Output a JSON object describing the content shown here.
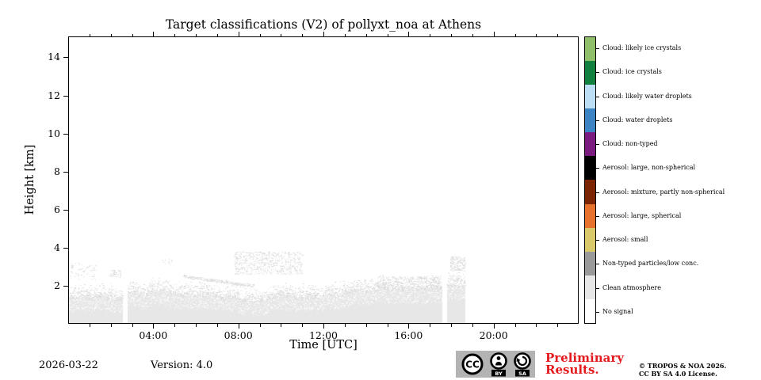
{
  "title": "Target classifications (V2) of pollyxt_noa at Athens",
  "footer": {
    "date": "2026-03-22",
    "version": "Version: 4.0",
    "preliminary": {
      "line1": "Preliminary",
      "line2": "Results.",
      "color": "#e4191c"
    },
    "copyright": {
      "line1": "© TROPOS & NOA 2026.",
      "line2": "CC BY SA 4.0 License."
    },
    "cc_badge": {
      "cc": "CC",
      "by": "BY",
      "sa": "SA",
      "bg": "#b3b3b3"
    }
  },
  "chart_data": {
    "type": "heatmap",
    "title": "Target classifications (V2) of pollyxt_noa at Athens",
    "xlabel": "Time [UTC]",
    "ylabel": "Height [km]",
    "xlim_hours": [
      0,
      24
    ],
    "ylim_km": [
      0,
      15.1
    ],
    "x_major_ticks": [
      {
        "hour": 4,
        "label": "04:00"
      },
      {
        "hour": 8,
        "label": "08:00"
      },
      {
        "hour": 12,
        "label": "12:00"
      },
      {
        "hour": 16,
        "label": "16:00"
      },
      {
        "hour": 20,
        "label": "20:00"
      }
    ],
    "x_minor_tick_every_hours": 1,
    "y_ticks_km": [
      2,
      4,
      6,
      8,
      10,
      12,
      14
    ],
    "grid": false,
    "legend_position": "right-colorbar",
    "classes": [
      {
        "label": "Cloud: likely ice crystals",
        "color": "#8fbf69"
      },
      {
        "label": "Cloud: ice crystals",
        "color": "#12803e"
      },
      {
        "label": "Cloud: likely water droplets",
        "color": "#bcdff6"
      },
      {
        "label": "Cloud: water droplets",
        "color": "#3d84c4"
      },
      {
        "label": "Cloud: non-typed",
        "color": "#7b1b80"
      },
      {
        "label": "Aerosol: large, non-spherical",
        "color": "#000000"
      },
      {
        "label": "Aerosol: mixture, partly non-spherical",
        "color": "#7c2400"
      },
      {
        "label": "Aerosol: large, spherical",
        "color": "#e7722e"
      },
      {
        "label": "Aerosol: small",
        "color": "#d9c96b"
      },
      {
        "label": "Non-typed particles/low conc.",
        "color": "#9a9a9a"
      },
      {
        "label": "Clean atmosphere",
        "color": "#e7e7e7"
      },
      {
        "label": "No signal",
        "color": "#ffffff"
      }
    ],
    "observations": {
      "description": "Speckled clean-atmosphere layer below ~2 km from 00:00 to ~18:40 UTC; white (no signal) elsewhere; short data gaps near 02:40 and 17:40 UTC.",
      "dominant_class_low_levels": "Clean atmosphere",
      "bands": [
        {
          "t0": 0.0,
          "t1": 2.57,
          "top_km": 1.35,
          "var_km": 0.3
        },
        {
          "t0": 2.8,
          "t1": 17.56,
          "top_km": 1.45,
          "var_km": 0.35
        },
        {
          "t0": 17.82,
          "t1": 18.65,
          "top_km": 2.0,
          "var_km": 0.15
        }
      ],
      "gaps": [
        {
          "t0": 2.57,
          "t1": 2.8
        },
        {
          "t0": 17.56,
          "t1": 17.82
        },
        {
          "t0": 18.65,
          "t1": 24.0
        }
      ],
      "clusters": [
        {
          "t0": 0.05,
          "t1": 1.3,
          "h0": 2.3,
          "h1": 3.2,
          "n": 60
        },
        {
          "t0": 1.9,
          "t1": 2.45,
          "h0": 2.45,
          "h1": 2.85,
          "n": 45
        },
        {
          "t0": 4.4,
          "t1": 4.9,
          "h0": 3.1,
          "h1": 3.4,
          "n": 14
        },
        {
          "t0": 7.8,
          "t1": 11.0,
          "h0": 2.6,
          "h1": 3.8,
          "n": 600
        },
        {
          "t0": 14.5,
          "t1": 17.5,
          "h0": 1.8,
          "h1": 2.5,
          "n": 420
        },
        {
          "t0": 17.95,
          "t1": 18.65,
          "h0": 2.8,
          "h1": 3.55,
          "n": 170
        }
      ],
      "streaks": [
        {
          "t0": 5.4,
          "t1": 8.7,
          "h_start": 2.5,
          "h_end": 2.0,
          "n": 320
        }
      ]
    }
  }
}
